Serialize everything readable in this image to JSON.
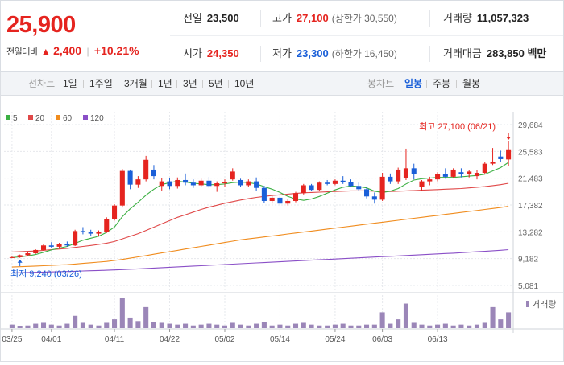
{
  "quote": {
    "current_price": "25,900",
    "change_label": "전일대비",
    "change_arrow": "▲",
    "change_amount": "2,400",
    "change_rate": "+10.21%"
  },
  "info": {
    "prev_close_label": "전일",
    "prev_close": "23,500",
    "high_label": "고가",
    "high": "27,100",
    "upper_limit_text": "(상한가 30,550)",
    "volume_label": "거래량",
    "volume": "11,057,323",
    "open_label": "시가",
    "open": "24,350",
    "low_label": "저가",
    "low": "23,300",
    "lower_limit_text": "(하한가 16,450)",
    "turnover_label": "거래대금",
    "turnover": "283,850",
    "turnover_unit": "백만"
  },
  "line_tabs": {
    "group_label": "선차트",
    "items": [
      "1일",
      "1주일",
      "3개월",
      "1년",
      "3년",
      "5년",
      "10년"
    ]
  },
  "candle_tabs": {
    "group_label": "봉차트",
    "items": [
      "일봉",
      "주봉",
      "월봉"
    ],
    "active": "일봉"
  },
  "chart_data": {
    "type": "candlestick",
    "legend": [
      {
        "label": "5",
        "color": "#3cb043"
      },
      {
        "label": "20",
        "color": "#e04848"
      },
      {
        "label": "60",
        "color": "#f08c1e"
      },
      {
        "label": "120",
        "color": "#8a4fc7"
      }
    ],
    "y_ticks": [
      "29,684",
      "25,583",
      "21,483",
      "17,382",
      "13,282",
      "9,182",
      "5,081"
    ],
    "y_range": [
      5081,
      29684
    ],
    "x_labels": [
      "03/25",
      "04/01",
      "04/11",
      "04/22",
      "05/02",
      "05/14",
      "05/24",
      "06/03",
      "06/13"
    ],
    "x_label_index": [
      0,
      5,
      13,
      20,
      27,
      34,
      41,
      47,
      54
    ],
    "annotation_high": "최고 27,100 (06/21)",
    "annotation_low": "최저 9,240 (03/26)",
    "volume_legend": "거래량",
    "candles": [
      [
        9300,
        9500,
        9240,
        9400
      ],
      [
        9400,
        9800,
        9300,
        9700
      ],
      [
        9700,
        10200,
        9600,
        10000
      ],
      [
        10000,
        10600,
        9900,
        10500
      ],
      [
        10500,
        11400,
        10400,
        11200
      ],
      [
        11200,
        11700,
        10800,
        11000
      ],
      [
        11000,
        11600,
        10700,
        11400
      ],
      [
        11400,
        11800,
        11000,
        11200
      ],
      [
        11200,
        13600,
        11100,
        13400
      ],
      [
        13400,
        14000,
        12900,
        13200
      ],
      [
        13200,
        13600,
        12700,
        13000
      ],
      [
        13000,
        13500,
        12600,
        13300
      ],
      [
        13300,
        15500,
        13100,
        15200
      ],
      [
        15200,
        17500,
        15000,
        17300
      ],
      [
        17300,
        22900,
        17000,
        22600
      ],
      [
        22600,
        22800,
        19800,
        20500
      ],
      [
        20500,
        21800,
        20000,
        21300
      ],
      [
        21300,
        24900,
        21000,
        24300
      ],
      [
        22800,
        23500,
        21300,
        21800
      ],
      [
        20300,
        21500,
        19600,
        21000
      ],
      [
        21000,
        21500,
        19800,
        20300
      ],
      [
        20300,
        21600,
        19900,
        21200
      ],
      [
        21200,
        22200,
        20400,
        20800
      ],
      [
        20800,
        21300,
        20000,
        20400
      ],
      [
        20400,
        21400,
        20100,
        21100
      ],
      [
        21100,
        21700,
        20000,
        20300
      ],
      [
        20300,
        21000,
        19400,
        20700
      ],
      [
        20700,
        21300,
        20200,
        20900
      ],
      [
        21300,
        23000,
        21100,
        22500
      ],
      [
        21200,
        21400,
        20200,
        20400
      ],
      [
        20400,
        21300,
        20100,
        21000
      ],
      [
        21000,
        21600,
        19600,
        20000
      ],
      [
        20000,
        20300,
        17700,
        18000
      ],
      [
        18000,
        18800,
        17600,
        18500
      ],
      [
        18500,
        18900,
        17400,
        17600
      ],
      [
        17600,
        18300,
        17300,
        18000
      ],
      [
        18000,
        19400,
        17800,
        19200
      ],
      [
        19200,
        20600,
        19000,
        20400
      ],
      [
        20400,
        20600,
        19500,
        19700
      ],
      [
        19700,
        21000,
        19500,
        20800
      ],
      [
        20800,
        21200,
        20400,
        20600
      ],
      [
        20600,
        21300,
        20400,
        21100
      ],
      [
        21100,
        21800,
        20600,
        20900
      ],
      [
        20900,
        21300,
        20100,
        20300
      ],
      [
        20300,
        20800,
        19500,
        19800
      ],
      [
        19800,
        20100,
        18400,
        18700
      ],
      [
        18700,
        19300,
        17600,
        18200
      ],
      [
        18200,
        22300,
        18000,
        21700
      ],
      [
        21700,
        22200,
        20600,
        21000
      ],
      [
        21000,
        23100,
        20600,
        22800
      ],
      [
        21500,
        26000,
        21200,
        23000
      ],
      [
        23000,
        23700,
        21300,
        22100
      ],
      [
        20200,
        21200,
        19600,
        21000
      ],
      [
        21000,
        21700,
        20400,
        21300
      ],
      [
        21300,
        22400,
        21000,
        22100
      ],
      [
        22100,
        23000,
        21400,
        21700
      ],
      [
        21700,
        23000,
        21500,
        22800
      ],
      [
        22400,
        23000,
        21600,
        22100
      ],
      [
        22100,
        22700,
        21600,
        22500
      ],
      [
        21800,
        22700,
        21300,
        22300
      ],
      [
        22300,
        24000,
        22100,
        23700
      ],
      [
        23700,
        26100,
        23500,
        24000
      ],
      [
        24800,
        25700,
        24000,
        24400
      ],
      [
        24350,
        27100,
        23300,
        25900
      ]
    ],
    "volumes": [
      4,
      2,
      3,
      5,
      6,
      4,
      3,
      5,
      14,
      6,
      4,
      3,
      6,
      10,
      34,
      12,
      8,
      24,
      7,
      6,
      5,
      4,
      5,
      3,
      4,
      5,
      4,
      3,
      6,
      4,
      3,
      5,
      7,
      3,
      4,
      3,
      5,
      6,
      4,
      3,
      3,
      4,
      5,
      3,
      3,
      4,
      4,
      18,
      5,
      10,
      28,
      6,
      4,
      3,
      4,
      5,
      3,
      4,
      3,
      4,
      6,
      24,
      10,
      18
    ],
    "ma5": [
      9350,
      9450,
      9600,
      9800,
      10150,
      10500,
      10800,
      11050,
      11500,
      12000,
      12300,
      12600,
      13200,
      14000,
      15600,
      16800,
      17800,
      18900,
      19800,
      20500,
      20800,
      21000,
      20900,
      20700,
      20600,
      20500,
      20500,
      20600,
      20800,
      20900,
      20800,
      20600,
      20200,
      19800,
      19300,
      18700,
      18300,
      18100,
      18300,
      18700,
      19200,
      19700,
      20100,
      20300,
      20200,
      20000,
      19500,
      19300,
      19500,
      19900,
      20600,
      21200,
      21400,
      21500,
      21600,
      21600,
      21600,
      21700,
      21800,
      21900,
      22100,
      22600,
      23100,
      23900
    ],
    "ma20": [
      10200,
      10250,
      10300,
      10350,
      10450,
      10550,
      10650,
      10750,
      10900,
      11050,
      11200,
      11350,
      11550,
      11800,
      12200,
      12600,
      13000,
      13500,
      14000,
      14500,
      15000,
      15500,
      15900,
      16300,
      16700,
      17050,
      17350,
      17650,
      17900,
      18150,
      18350,
      18550,
      18700,
      18850,
      18950,
      19050,
      19150,
      19250,
      19300,
      19350,
      19400,
      19450,
      19500,
      19550,
      19550,
      19550,
      19500,
      19450,
      19450,
      19500,
      19550,
      19600,
      19650,
      19700,
      19750,
      19800,
      19850,
      19900,
      20000,
      20100,
      20200,
      20350,
      20500,
      20700
    ],
    "ma60": [
      7900,
      7950,
      8000,
      8050,
      8100,
      8150,
      8200,
      8250,
      8350,
      8450,
      8550,
      8650,
      8750,
      8900,
      9050,
      9250,
      9450,
      9650,
      9850,
      10050,
      10250,
      10450,
      10650,
      10850,
      11050,
      11250,
      11450,
      11650,
      11850,
      12050,
      12200,
      12350,
      12500,
      12650,
      12800,
      12950,
      13100,
      13250,
      13400,
      13550,
      13700,
      13850,
      14000,
      14150,
      14300,
      14450,
      14600,
      14750,
      14900,
      15050,
      15200,
      15350,
      15500,
      15650,
      15800,
      15950,
      16100,
      16250,
      16400,
      16550,
      16700,
      16850,
      17000,
      17200
    ],
    "ma120": [
      7000,
      7030,
      7060,
      7090,
      7120,
      7150,
      7180,
      7210,
      7250,
      7290,
      7330,
      7370,
      7410,
      7450,
      7500,
      7560,
      7620,
      7680,
      7740,
      7800,
      7860,
      7920,
      7980,
      8040,
      8100,
      8160,
      8220,
      8280,
      8340,
      8400,
      8460,
      8520,
      8580,
      8640,
      8700,
      8760,
      8820,
      8880,
      8940,
      9000,
      9060,
      9120,
      9180,
      9240,
      9300,
      9360,
      9420,
      9480,
      9540,
      9600,
      9660,
      9720,
      9780,
      9840,
      9900,
      9960,
      10020,
      10090,
      10160,
      10230,
      10300,
      10380,
      10460,
      10550
    ]
  },
  "colors": {
    "up": "#e5241f",
    "down": "#1a5fd8",
    "grid": "#e6e8ec"
  }
}
